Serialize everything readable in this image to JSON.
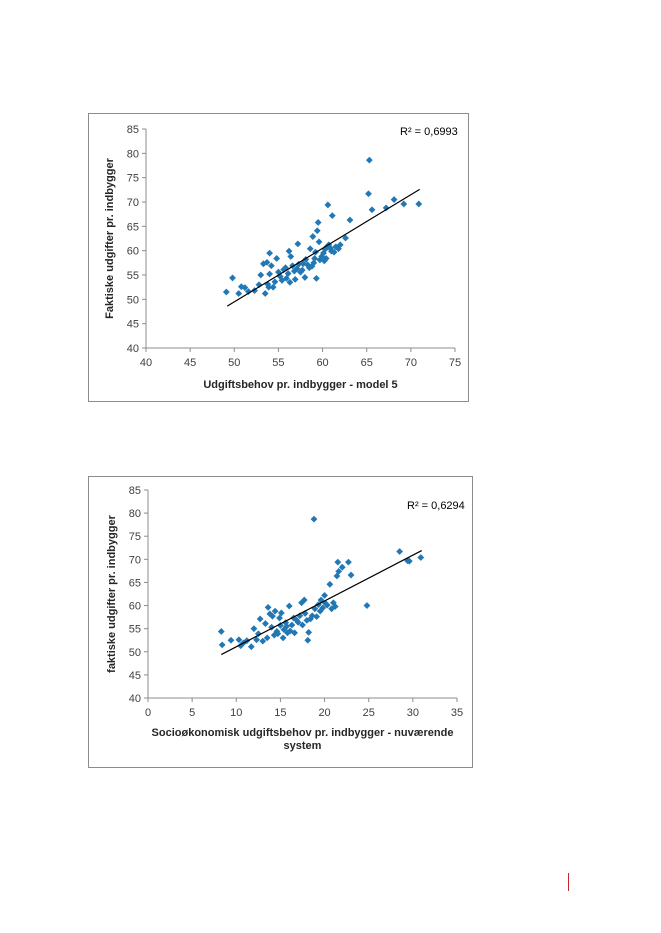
{
  "colors": {
    "marker": "#2278b5",
    "trend": "#000000",
    "axis": "#8c8c8c",
    "page_mark": "#c0282d"
  },
  "chart_data": [
    {
      "type": "scatter",
      "xlabel": "Udgiftsbehov pr. indbygger - model 5",
      "ylabel": "Faktiske udgifter pr. indbygger",
      "xlim": [
        40,
        75
      ],
      "ylim": [
        40,
        85
      ],
      "xticks": [
        "40",
        "45",
        "50",
        "55",
        "60",
        "65",
        "70",
        "75"
      ],
      "yticks": [
        "40",
        "45",
        "50",
        "55",
        "60",
        "65",
        "70",
        "75",
        "80",
        "85"
      ],
      "r2_label": "R² = 0,6993",
      "grid": false,
      "trendline": {
        "x": [
          49.2,
          71.0
        ],
        "y": [
          48.6,
          72.6
        ]
      },
      "points": [
        [
          49.1,
          51.5
        ],
        [
          49.8,
          54.4
        ],
        [
          50.5,
          51.2
        ],
        [
          50.8,
          52.6
        ],
        [
          51.2,
          52.4
        ],
        [
          51.6,
          51.6
        ],
        [
          52.3,
          51.8
        ],
        [
          52.8,
          53.0
        ],
        [
          53.0,
          55.0
        ],
        [
          53.3,
          57.3
        ],
        [
          53.5,
          51.2
        ],
        [
          53.7,
          57.6
        ],
        [
          53.8,
          53.1
        ],
        [
          53.9,
          52.5
        ],
        [
          54.0,
          55.2
        ],
        [
          54.0,
          59.5
        ],
        [
          54.2,
          56.9
        ],
        [
          54.4,
          52.5
        ],
        [
          54.6,
          53.6
        ],
        [
          54.8,
          58.4
        ],
        [
          55.0,
          55.6
        ],
        [
          55.2,
          54.7
        ],
        [
          55.4,
          53.9
        ],
        [
          55.6,
          56.1
        ],
        [
          55.8,
          56.5
        ],
        [
          55.9,
          54.3
        ],
        [
          56.1,
          55.3
        ],
        [
          56.2,
          59.9
        ],
        [
          56.3,
          53.5
        ],
        [
          56.4,
          58.8
        ],
        [
          56.6,
          56.9
        ],
        [
          56.8,
          55.8
        ],
        [
          56.9,
          54.1
        ],
        [
          57.1,
          56.3
        ],
        [
          57.2,
          61.4
        ],
        [
          57.3,
          57.2
        ],
        [
          57.5,
          55.6
        ],
        [
          57.7,
          56.0
        ],
        [
          57.8,
          57.3
        ],
        [
          58.0,
          54.5
        ],
        [
          58.1,
          58.2
        ],
        [
          58.3,
          57.1
        ],
        [
          58.5,
          56.5
        ],
        [
          58.6,
          60.4
        ],
        [
          58.8,
          56.8
        ],
        [
          58.9,
          62.9
        ],
        [
          59.0,
          57.5
        ],
        [
          59.1,
          58.4
        ],
        [
          59.2,
          59.7
        ],
        [
          59.3,
          54.3
        ],
        [
          59.4,
          64.1
        ],
        [
          59.5,
          65.8
        ],
        [
          59.6,
          61.8
        ],
        [
          59.7,
          58.1
        ],
        [
          59.9,
          58.8
        ],
        [
          60.1,
          59.5
        ],
        [
          60.2,
          57.9
        ],
        [
          60.3,
          60.3
        ],
        [
          60.4,
          58.4
        ],
        [
          60.5,
          60.8
        ],
        [
          60.6,
          69.4
        ],
        [
          60.7,
          61.2
        ],
        [
          60.9,
          60.5
        ],
        [
          61.0,
          59.9
        ],
        [
          61.1,
          67.2
        ],
        [
          61.3,
          59.7
        ],
        [
          61.5,
          60.8
        ],
        [
          61.8,
          60.4
        ],
        [
          62.0,
          61.2
        ],
        [
          62.6,
          62.6
        ],
        [
          63.1,
          66.3
        ],
        [
          65.2,
          71.7
        ],
        [
          65.3,
          78.6
        ],
        [
          65.6,
          68.4
        ],
        [
          67.2,
          68.8
        ],
        [
          68.1,
          70.5
        ],
        [
          69.2,
          69.6
        ],
        [
          70.9,
          69.6
        ]
      ]
    },
    {
      "type": "scatter",
      "xlabel": "Socioøkonomisk udgiftsbehov pr. indbygger - nuværende system",
      "ylabel": "faktiske udgifter pr. indbygger",
      "xlim": [
        0,
        35
      ],
      "ylim": [
        40,
        85
      ],
      "xticks": [
        "0",
        "5",
        "10",
        "15",
        "20",
        "25",
        "30",
        "35"
      ],
      "yticks": [
        "40",
        "45",
        "50",
        "55",
        "60",
        "65",
        "70",
        "75",
        "80",
        "85"
      ],
      "r2_label": "R² = 0,6294",
      "grid": false,
      "trendline": {
        "x": [
          8.3,
          31.0
        ],
        "y": [
          49.4,
          71.9
        ]
      },
      "points": [
        [
          8.3,
          54.4
        ],
        [
          8.4,
          51.5
        ],
        [
          9.4,
          52.5
        ],
        [
          10.3,
          52.6
        ],
        [
          10.5,
          51.3
        ],
        [
          10.8,
          51.9
        ],
        [
          11.2,
          52.4
        ],
        [
          11.7,
          51.1
        ],
        [
          12.0,
          55.0
        ],
        [
          12.3,
          52.6
        ],
        [
          12.5,
          53.9
        ],
        [
          12.7,
          57.1
        ],
        [
          13.0,
          52.3
        ],
        [
          13.3,
          56.1
        ],
        [
          13.5,
          53.0
        ],
        [
          13.6,
          59.6
        ],
        [
          13.8,
          58.2
        ],
        [
          14.0,
          55.3
        ],
        [
          14.1,
          57.7
        ],
        [
          14.3,
          53.6
        ],
        [
          14.4,
          58.8
        ],
        [
          14.6,
          54.4
        ],
        [
          14.7,
          53.9
        ],
        [
          14.9,
          57.3
        ],
        [
          15.0,
          55.7
        ],
        [
          15.1,
          58.4
        ],
        [
          15.3,
          53.0
        ],
        [
          15.4,
          54.8
        ],
        [
          15.6,
          56.3
        ],
        [
          15.7,
          55.5
        ],
        [
          15.8,
          54.1
        ],
        [
          16.0,
          59.9
        ],
        [
          16.1,
          54.5
        ],
        [
          16.3,
          55.8
        ],
        [
          16.5,
          57.3
        ],
        [
          16.6,
          54.1
        ],
        [
          16.8,
          56.9
        ],
        [
          17.0,
          56.4
        ],
        [
          17.2,
          57.8
        ],
        [
          17.4,
          60.6
        ],
        [
          17.5,
          55.8
        ],
        [
          17.7,
          61.2
        ],
        [
          17.8,
          58.3
        ],
        [
          18.0,
          56.8
        ],
        [
          18.1,
          52.5
        ],
        [
          18.2,
          54.2
        ],
        [
          18.4,
          57.1
        ],
        [
          18.6,
          57.8
        ],
        [
          18.8,
          78.7
        ],
        [
          18.9,
          59.3
        ],
        [
          19.1,
          57.6
        ],
        [
          19.3,
          60.2
        ],
        [
          19.5,
          58.8
        ],
        [
          19.6,
          61.2
        ],
        [
          19.8,
          59.5
        ],
        [
          20.0,
          62.2
        ],
        [
          20.1,
          60.5
        ],
        [
          20.3,
          60.1
        ],
        [
          20.6,
          64.6
        ],
        [
          20.8,
          59.3
        ],
        [
          21.0,
          60.6
        ],
        [
          21.2,
          59.8
        ],
        [
          21.4,
          66.4
        ],
        [
          21.5,
          69.4
        ],
        [
          21.6,
          67.4
        ],
        [
          22.0,
          68.3
        ],
        [
          22.7,
          69.4
        ],
        [
          23.0,
          66.6
        ],
        [
          24.8,
          60.0
        ],
        [
          28.5,
          71.7
        ],
        [
          29.4,
          69.7
        ],
        [
          29.6,
          69.6
        ],
        [
          30.9,
          70.4
        ]
      ]
    }
  ]
}
